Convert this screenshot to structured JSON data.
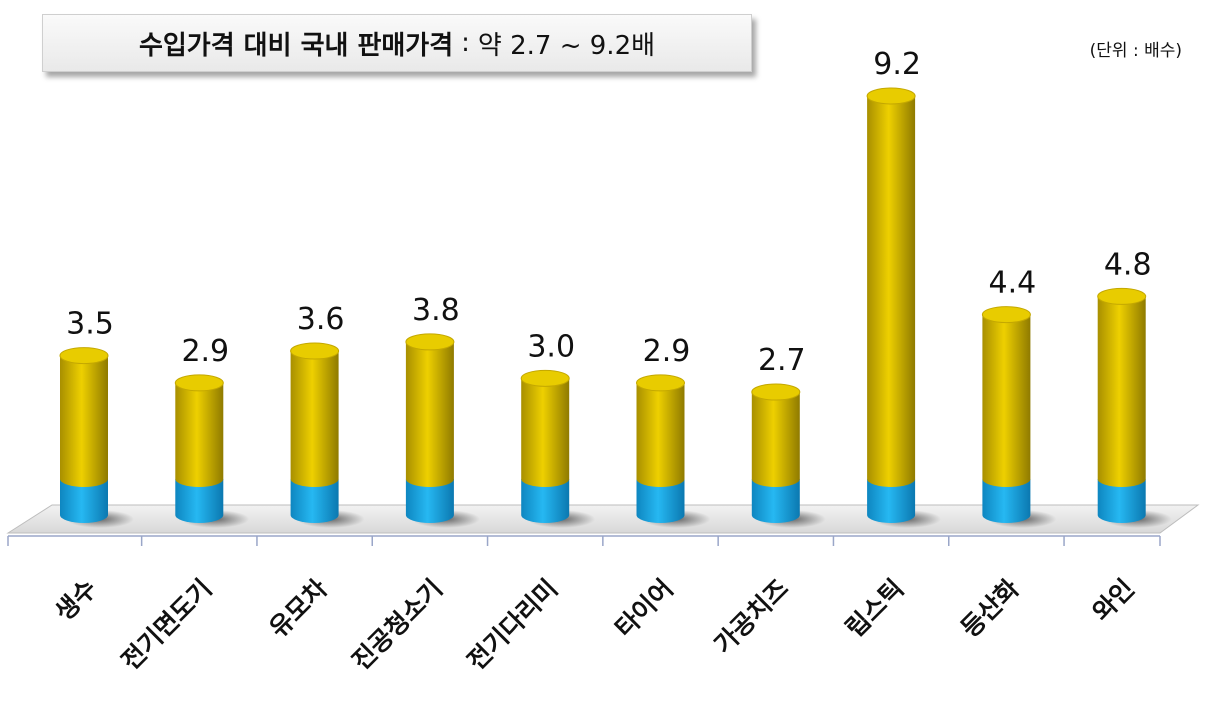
{
  "title": {
    "main": "수입가격 대비 국내 판매가격",
    "separator": ":",
    "range_text": "약 2.7 ~ 9.2배"
  },
  "unit_label": "(단위 : 배수)",
  "colors": {
    "bar_top": "#d9bc00",
    "bar_base": "#1aa3e0",
    "floor": "#e5e5e5"
  },
  "chart_data": {
    "type": "bar",
    "categories": [
      "생수",
      "전기면도기",
      "유모차",
      "진공청소기",
      "전기다리미",
      "타이어",
      "가공치즈",
      "립스틱",
      "등산화",
      "와인"
    ],
    "values": [
      3.5,
      2.9,
      3.6,
      3.8,
      3.0,
      2.9,
      2.7,
      9.2,
      4.4,
      4.8
    ],
    "data_labels": [
      "3.5",
      "2.9",
      "3.6",
      "3.8",
      "3.0",
      "2.9",
      "2.7",
      "9.2",
      "4.4",
      "4.8"
    ],
    "ylim": [
      0,
      9.2
    ],
    "grid": false,
    "legend": "none"
  }
}
